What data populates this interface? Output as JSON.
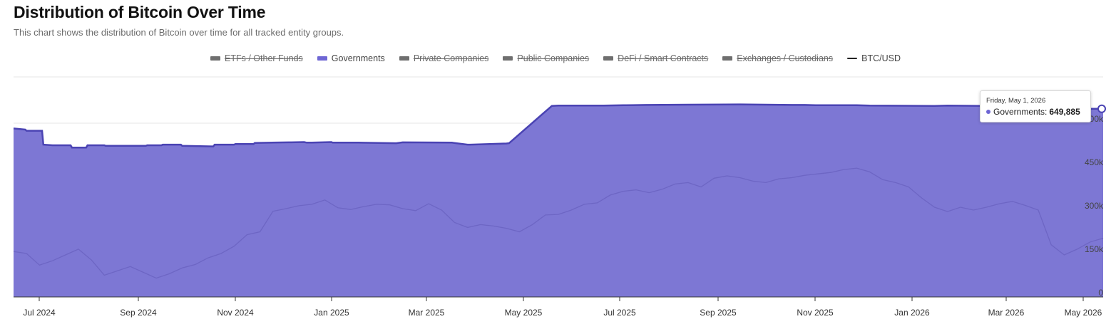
{
  "header": {
    "title": "Distribution of Bitcoin Over Time",
    "subtitle": "This chart shows the distribution of Bitcoin over time for all tracked entity groups."
  },
  "legend": [
    {
      "label": "ETFs / Other Funds",
      "hidden": true,
      "color": "#6f6f6f",
      "kind": "area"
    },
    {
      "label": "Governments",
      "hidden": false,
      "color": "#6e66d4",
      "kind": "area"
    },
    {
      "label": "Private Companies",
      "hidden": true,
      "color": "#6f6f6f",
      "kind": "area"
    },
    {
      "label": "Public Companies",
      "hidden": true,
      "color": "#6f6f6f",
      "kind": "area"
    },
    {
      "label": "DeFi / Smart Contracts",
      "hidden": true,
      "color": "#6f6f6f",
      "kind": "area"
    },
    {
      "label": "Exchanges / Custodians",
      "hidden": true,
      "color": "#6f6f6f",
      "kind": "area"
    },
    {
      "label": "BTC/USD",
      "hidden": false,
      "color": "#222222",
      "kind": "line"
    }
  ],
  "tooltip": {
    "date": "Friday, May 1, 2026",
    "series": "Governments:",
    "value": "649,885"
  },
  "colors": {
    "area_fill": "#7d77d4",
    "area_stroke": "#4a43b3",
    "price_line": "#6b64c2",
    "grid": "#e6e6e6"
  },
  "chart_data": {
    "type": "area",
    "title": "Distribution of Bitcoin Over Time",
    "x_tick_labels": [
      "Jul 2024",
      "Sep 2024",
      "Nov 2024",
      "Jan 2025",
      "Mar 2025",
      "May 2025",
      "Jul 2025",
      "Sep 2025",
      "Nov 2025",
      "Jan 2026",
      "Mar 2026",
      "May 2026"
    ],
    "y_tick_labels": [
      "0",
      "150k",
      "300k",
      "450k",
      "600k"
    ],
    "ylim": [
      0,
      760000
    ],
    "grid": true,
    "legend_position": "top-center",
    "series": [
      {
        "name": "Governments",
        "x": [
          0,
          0.5,
          0.9,
          1.0,
          2.2,
          2.3,
          3.0,
          3.1,
          4.4,
          4.5,
          5.6,
          5.7,
          7.0,
          7.1,
          10.2,
          10.3,
          11.4,
          11.5,
          12.9,
          13.0,
          15.4,
          15.5,
          17.0,
          17.1,
          18.5,
          18.6,
          21.2,
          21.4,
          22.4,
          22.6,
          23.0,
          24.5,
          24.6,
          26.6,
          29.5,
          30.0,
          33.8,
          35.0,
          35.2,
          38.0,
          38.2,
          41.5,
          42.0,
          45.4,
          45.5,
          47.0,
          47.2,
          48.8,
          48.9,
          52.0,
          56.0,
          60.0,
          61.0,
          62.0,
          65.0,
          66.0,
          71.0,
          72.0,
          75.0,
          76.0,
          80.0,
          83.0,
          84.0
        ],
        "values": [
          582000,
          580000,
          578000,
          574000,
          574000,
          526000,
          524000,
          524000,
          524000,
          516000,
          516000,
          524000,
          524000,
          522000,
          522000,
          524000,
          524000,
          526000,
          526000,
          522000,
          520000,
          526000,
          526000,
          528000,
          528000,
          532000,
          534000,
          534000,
          535000,
          533000,
          533000,
          535000,
          533000,
          533000,
          531000,
          534000,
          533000,
          526000,
          526000,
          530000,
          531000,
          660000,
          661000,
          661000,
          661000,
          662000,
          662000,
          663000,
          663000,
          664000,
          665000,
          663000,
          663000,
          662000,
          662000,
          661000,
          660000,
          661000,
          660000,
          659000,
          660000,
          649885,
          649885
        ]
      },
      {
        "name": "BTC/USD",
        "x": [
          0,
          1,
          2,
          3,
          4,
          5,
          6,
          7,
          8,
          9,
          10,
          11,
          12,
          13,
          14,
          15,
          16,
          17,
          18,
          19,
          20,
          21,
          22,
          23,
          24,
          25,
          26,
          27,
          28,
          29,
          30,
          31,
          32,
          33,
          34,
          35,
          36,
          37,
          38,
          39,
          40,
          41,
          42,
          43,
          44,
          45,
          46,
          47,
          48,
          49,
          50,
          51,
          52,
          53,
          54,
          55,
          56,
          57,
          58,
          59,
          60,
          61,
          62,
          63,
          64,
          65,
          66,
          67,
          68,
          69,
          70,
          71,
          72,
          73,
          74,
          75,
          76,
          77,
          78,
          79,
          80,
          81,
          82,
          83,
          84
        ],
        "values": [
          157000,
          150000,
          110000,
          125000,
          145000,
          165000,
          128000,
          75000,
          90000,
          105000,
          85000,
          65000,
          80000,
          100000,
          112000,
          135000,
          150000,
          175000,
          215000,
          225000,
          296000,
          305000,
          315000,
          320000,
          335000,
          308000,
          302000,
          312000,
          320000,
          318000,
          305000,
          298000,
          322000,
          300000,
          257000,
          240000,
          250000,
          245000,
          237000,
          225000,
          250000,
          283000,
          285000,
          300000,
          320000,
          325000,
          352000,
          365000,
          370000,
          360000,
          372000,
          390000,
          395000,
          380000,
          410000,
          418000,
          412000,
          400000,
          395000,
          408000,
          412000,
          420000,
          425000,
          430000,
          440000,
          445000,
          432000,
          405000,
          395000,
          380000,
          342000,
          310000,
          295000,
          310000,
          300000,
          310000,
          322000,
          330000,
          316000,
          300000,
          180000,
          145000,
          165000,
          190000,
          203000
        ],
        "note_x": "x is month index positions relative to ticks"
      }
    ]
  }
}
